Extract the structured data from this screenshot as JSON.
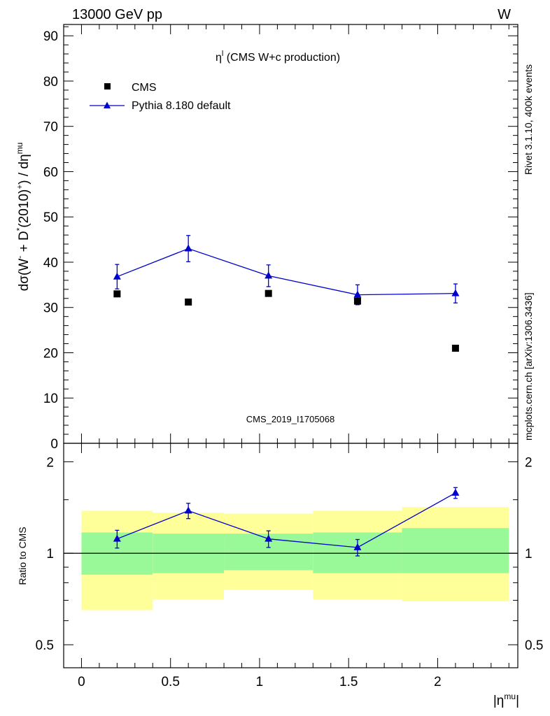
{
  "header": {
    "left": "13000 GeV pp",
    "right": "W"
  },
  "side_text": {
    "rivet": "Rivet 3.1.10,  400k events",
    "mcplots": "mcplots.cern.ch [arXiv:1306.3436]"
  },
  "watermark": "CMS_2019_I1705068",
  "chart_data": {
    "type": "scatter",
    "title": "η",
    "title_sup": "l",
    "title_rest": " (CMS W+c production)",
    "ylabel_parts": [
      "dσ(W",
      "-",
      " + D",
      "*",
      "(2010)",
      "+",
      ") / dη",
      "mu",
      ""
    ],
    "ylabel_sup_indexes": [
      1,
      3,
      5,
      7
    ],
    "xlabel_parts": [
      "|η",
      "mu",
      "|"
    ],
    "xlim": [
      -0.1,
      2.45
    ],
    "main_ylim": [
      0,
      92.5
    ],
    "main_yticks": [
      0,
      10,
      20,
      30,
      40,
      50,
      60,
      70,
      80,
      90
    ],
    "main_ytick_labels": [
      "0",
      "10",
      "20",
      "30",
      "40",
      "50",
      "60",
      "70",
      "80",
      "90"
    ],
    "xticks": [
      0,
      0.5,
      1,
      1.5,
      2
    ],
    "xtick_labels": [
      "0",
      "0.5",
      "1",
      "1.5",
      "2"
    ],
    "legend": [
      "CMS",
      "Pythia 8.180 default"
    ],
    "cms": {
      "x": [
        0.2,
        0.6,
        1.05,
        1.55,
        2.1
      ],
      "y": [
        33.0,
        31.2,
        33.1,
        31.4,
        21.0
      ],
      "bins": [
        [
          0,
          0.4
        ],
        [
          0.4,
          0.8
        ],
        [
          0.8,
          1.3
        ],
        [
          1.3,
          1.8
        ],
        [
          1.8,
          2.4
        ]
      ]
    },
    "pythia": {
      "x": [
        0.2,
        0.6,
        1.05,
        1.55,
        2.1
      ],
      "y": [
        36.8,
        43.0,
        37.0,
        32.8,
        33.1
      ],
      "err": [
        2.7,
        2.9,
        2.4,
        2.2,
        2.1
      ]
    },
    "ratio": {
      "ylabel": "Ratio to CMS",
      "ylim": [
        0.42,
        2.3
      ],
      "yticks": [
        0.5,
        1,
        2
      ],
      "ytick_labels": [
        "0.5",
        "1",
        "2"
      ],
      "values": [
        1.115,
        1.38,
        1.115,
        1.045,
        1.58
      ],
      "err": [
        0.075,
        0.08,
        0.07,
        0.065,
        0.065
      ],
      "band_inner": [
        [
          0.85,
          1.17
        ],
        [
          0.86,
          1.16
        ],
        [
          0.88,
          1.16
        ],
        [
          0.86,
          1.17
        ],
        [
          0.86,
          1.21
        ]
      ],
      "band_outer": [
        [
          0.65,
          1.38
        ],
        [
          0.705,
          1.36
        ],
        [
          0.76,
          1.35
        ],
        [
          0.705,
          1.38
        ],
        [
          0.695,
          1.42
        ]
      ]
    },
    "colors": {
      "pythia": "#0000cc",
      "cms": "#000000",
      "band_inner": "#99f999",
      "band_outer": "#ffff99",
      "side_text": "#808080"
    }
  }
}
